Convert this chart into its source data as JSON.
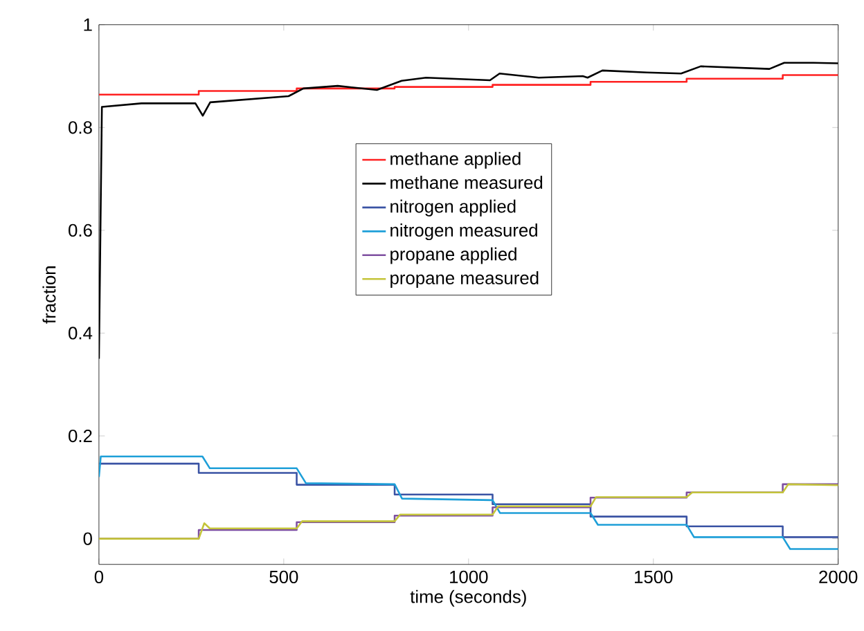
{
  "chart_data": {
    "type": "line",
    "xlabel": "time (seconds)",
    "ylabel": "fraction",
    "xlim": [
      0,
      2000
    ],
    "ylim": [
      -0.05,
      1
    ],
    "xticks": [
      0,
      500,
      1000,
      1500,
      2000
    ],
    "yticks": [
      0,
      0.2,
      0.4,
      0.6,
      0.8,
      1
    ],
    "grid": false,
    "legend": "top",
    "series": [
      {
        "name": "methane applied",
        "type": "step",
        "color": "#ff2020",
        "x": [
          0,
          270,
          535,
          800,
          1065,
          1330,
          1590,
          1850,
          2000
        ],
        "values": [
          0.864,
          0.871,
          0.876,
          0.879,
          0.883,
          0.889,
          0.895,
          0.902,
          0.902
        ]
      },
      {
        "name": "methane measured",
        "color": "#000000",
        "x": [
          0,
          8,
          115,
          261,
          281,
          301,
          513,
          553,
          646,
          752,
          819,
          885,
          1058,
          1084,
          1190,
          1309,
          1322,
          1362,
          1482,
          1575,
          1628,
          1814,
          1854,
          1933,
          2000
        ],
        "values": [
          0.35,
          0.84,
          0.847,
          0.847,
          0.823,
          0.849,
          0.861,
          0.876,
          0.881,
          0.873,
          0.891,
          0.897,
          0.892,
          0.905,
          0.897,
          0.9,
          0.897,
          0.911,
          0.907,
          0.905,
          0.919,
          0.914,
          0.926,
          0.926,
          0.925
        ]
      },
      {
        "name": "nitrogen applied",
        "type": "step",
        "color": "#3a53a4",
        "x": [
          0,
          270,
          535,
          800,
          1065,
          1330,
          1590,
          1850,
          2000
        ],
        "values": [
          0.146,
          0.128,
          0.105,
          0.086,
          0.067,
          0.043,
          0.024,
          0.003,
          0.003
        ]
      },
      {
        "name": "nitrogen measured",
        "color": "#1e9fd8",
        "x": [
          0,
          5,
          280,
          300,
          535,
          560,
          800,
          820,
          1065,
          1085,
          1330,
          1350,
          1590,
          1610,
          1850,
          1870,
          2000
        ],
        "values": [
          0.12,
          0.16,
          0.16,
          0.137,
          0.137,
          0.108,
          0.106,
          0.078,
          0.075,
          0.05,
          0.05,
          0.027,
          0.027,
          0.003,
          0.003,
          -0.02,
          -0.02
        ]
      },
      {
        "name": "propane applied",
        "type": "step",
        "color": "#7e4fa0",
        "x": [
          0,
          270,
          535,
          800,
          1065,
          1330,
          1590,
          1850,
          2000
        ],
        "values": [
          0,
          0.017,
          0.032,
          0.045,
          0.061,
          0.08,
          0.09,
          0.106,
          0.106
        ]
      },
      {
        "name": "propane measured",
        "color": "#c4c43a",
        "x": [
          0,
          270,
          285,
          300,
          535,
          550,
          800,
          815,
          1065,
          1080,
          1330,
          1345,
          1590,
          1605,
          1850,
          1865,
          2000
        ],
        "values": [
          0,
          0,
          0.03,
          0.02,
          0.02,
          0.034,
          0.034,
          0.047,
          0.047,
          0.063,
          0.063,
          0.081,
          0.081,
          0.09,
          0.09,
          0.106,
          0.104
        ]
      }
    ]
  }
}
